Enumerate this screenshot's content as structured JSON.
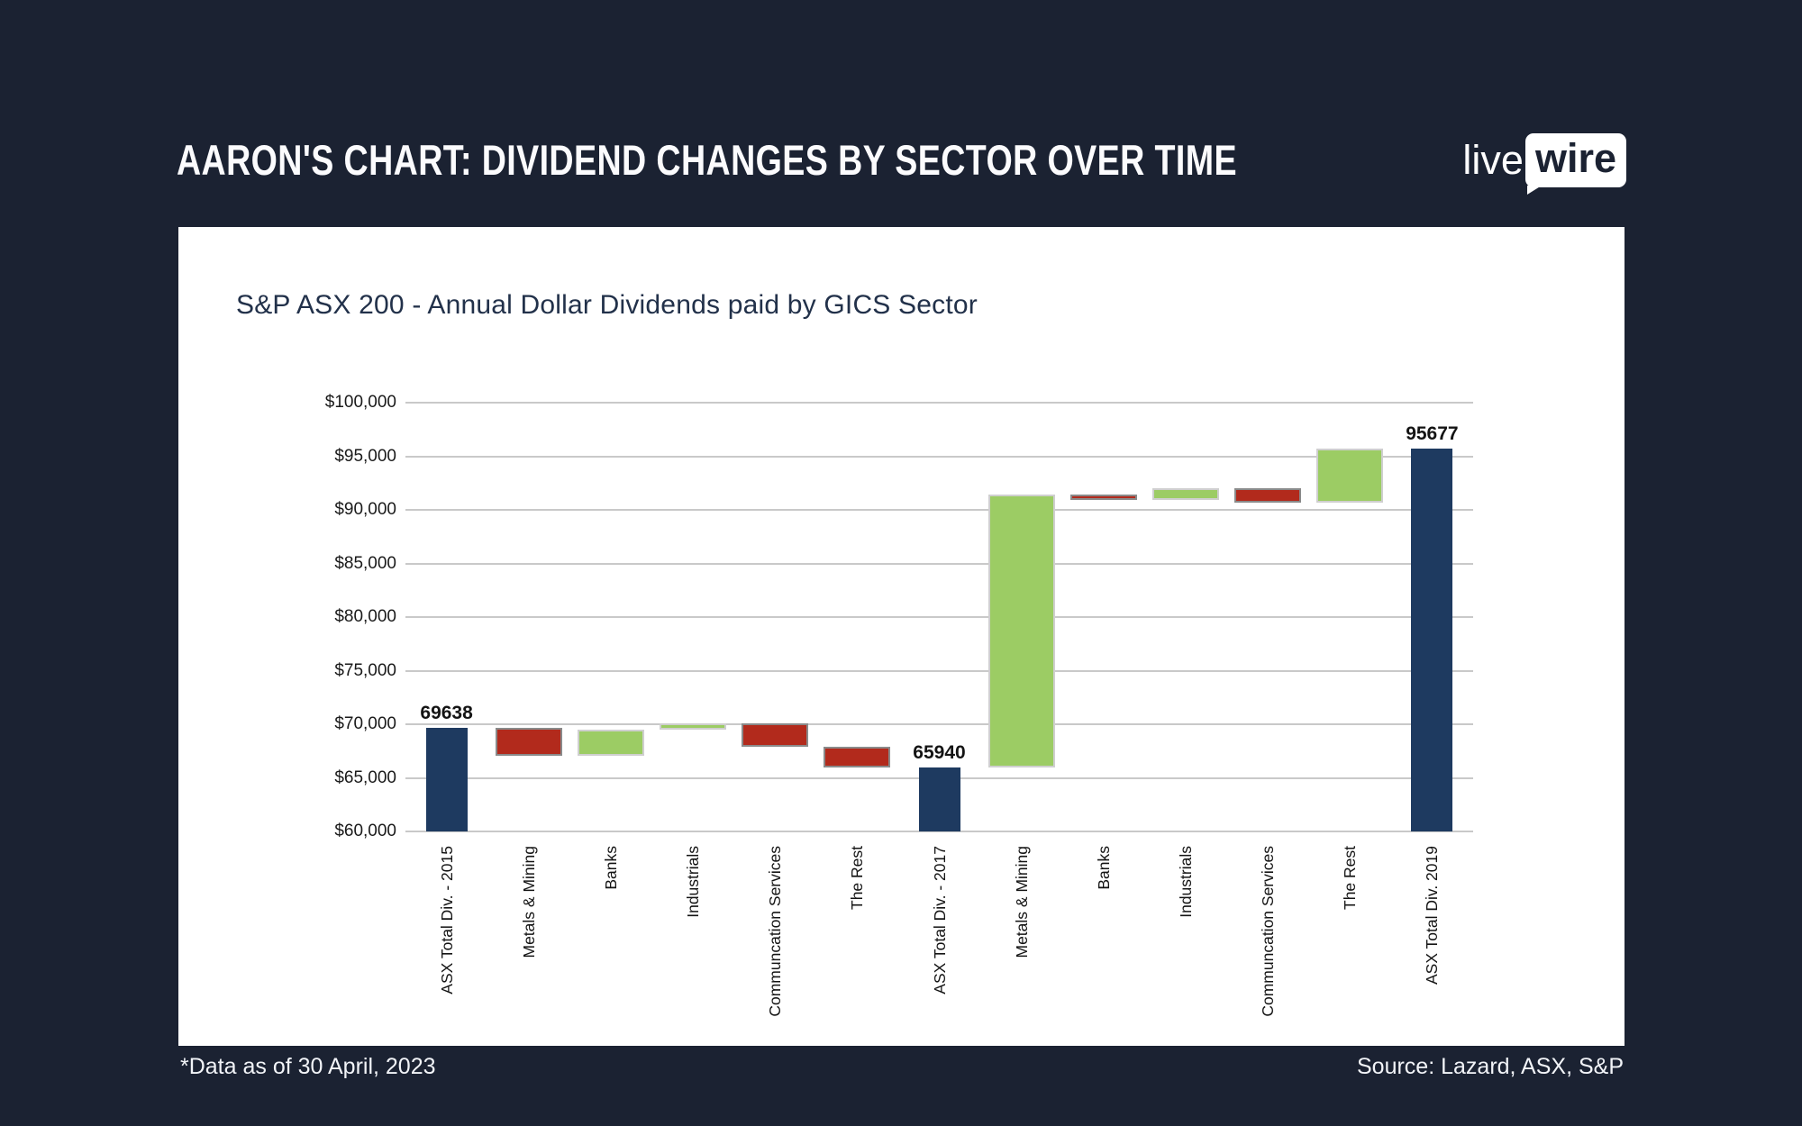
{
  "page": {
    "title": "AARON'S CHART: DIVIDEND CHANGES BY SECTOR OVER TIME",
    "logo": {
      "part1": "live",
      "part2": "wire"
    },
    "footnote": "*Data as of 30 April, 2023",
    "source": "Source: Lazard, ASX, S&P"
  },
  "chart_data": {
    "type": "bar",
    "subtype": "waterfall",
    "title": "S&P ASX 200 - Annual Dollar Dividends paid by GICS Sector",
    "ylabel": "",
    "xlabel": "",
    "ylim": [
      60000,
      100000
    ],
    "ytick_step": 5000,
    "ytick_labels": [
      "$60,000",
      "$65,000",
      "$70,000",
      "$75,000",
      "$80,000",
      "$85,000",
      "$90,000",
      "$95,000",
      "$100,000"
    ],
    "grid": true,
    "legend": false,
    "colors": {
      "total": "#1e3a60",
      "increase": "#9ccc64",
      "decrease": "#b22a1c"
    },
    "bars": [
      {
        "category": "ASX Total Div. - 2015",
        "role": "total",
        "start": 60000,
        "end": 69638,
        "label": "69638"
      },
      {
        "category": "Metals & Mining",
        "role": "decrease",
        "start": 69638,
        "end": 67020
      },
      {
        "category": "Banks",
        "role": "increase",
        "start": 67020,
        "end": 69480
      },
      {
        "category": "Industrials",
        "role": "increase",
        "start": 69480,
        "end": 70100
      },
      {
        "category": "Communcation Services",
        "role": "decrease",
        "start": 70100,
        "end": 67890
      },
      {
        "category": "The Rest",
        "role": "decrease",
        "start": 67890,
        "end": 65940
      },
      {
        "category": "ASX Total Div. - 2017",
        "role": "total",
        "start": 60000,
        "end": 65940,
        "label": "65940"
      },
      {
        "category": "Metals & Mining",
        "role": "increase",
        "start": 65940,
        "end": 91450
      },
      {
        "category": "Banks",
        "role": "decrease",
        "start": 91450,
        "end": 90900
      },
      {
        "category": "Industrials",
        "role": "increase",
        "start": 90900,
        "end": 92050
      },
      {
        "category": "Communcation Services",
        "role": "decrease",
        "start": 92050,
        "end": 90700
      },
      {
        "category": "The Rest",
        "role": "increase",
        "start": 90700,
        "end": 95677
      },
      {
        "category": "ASX Total Div. 2019",
        "role": "total",
        "start": 60000,
        "end": 95677,
        "label": "95677"
      }
    ]
  }
}
